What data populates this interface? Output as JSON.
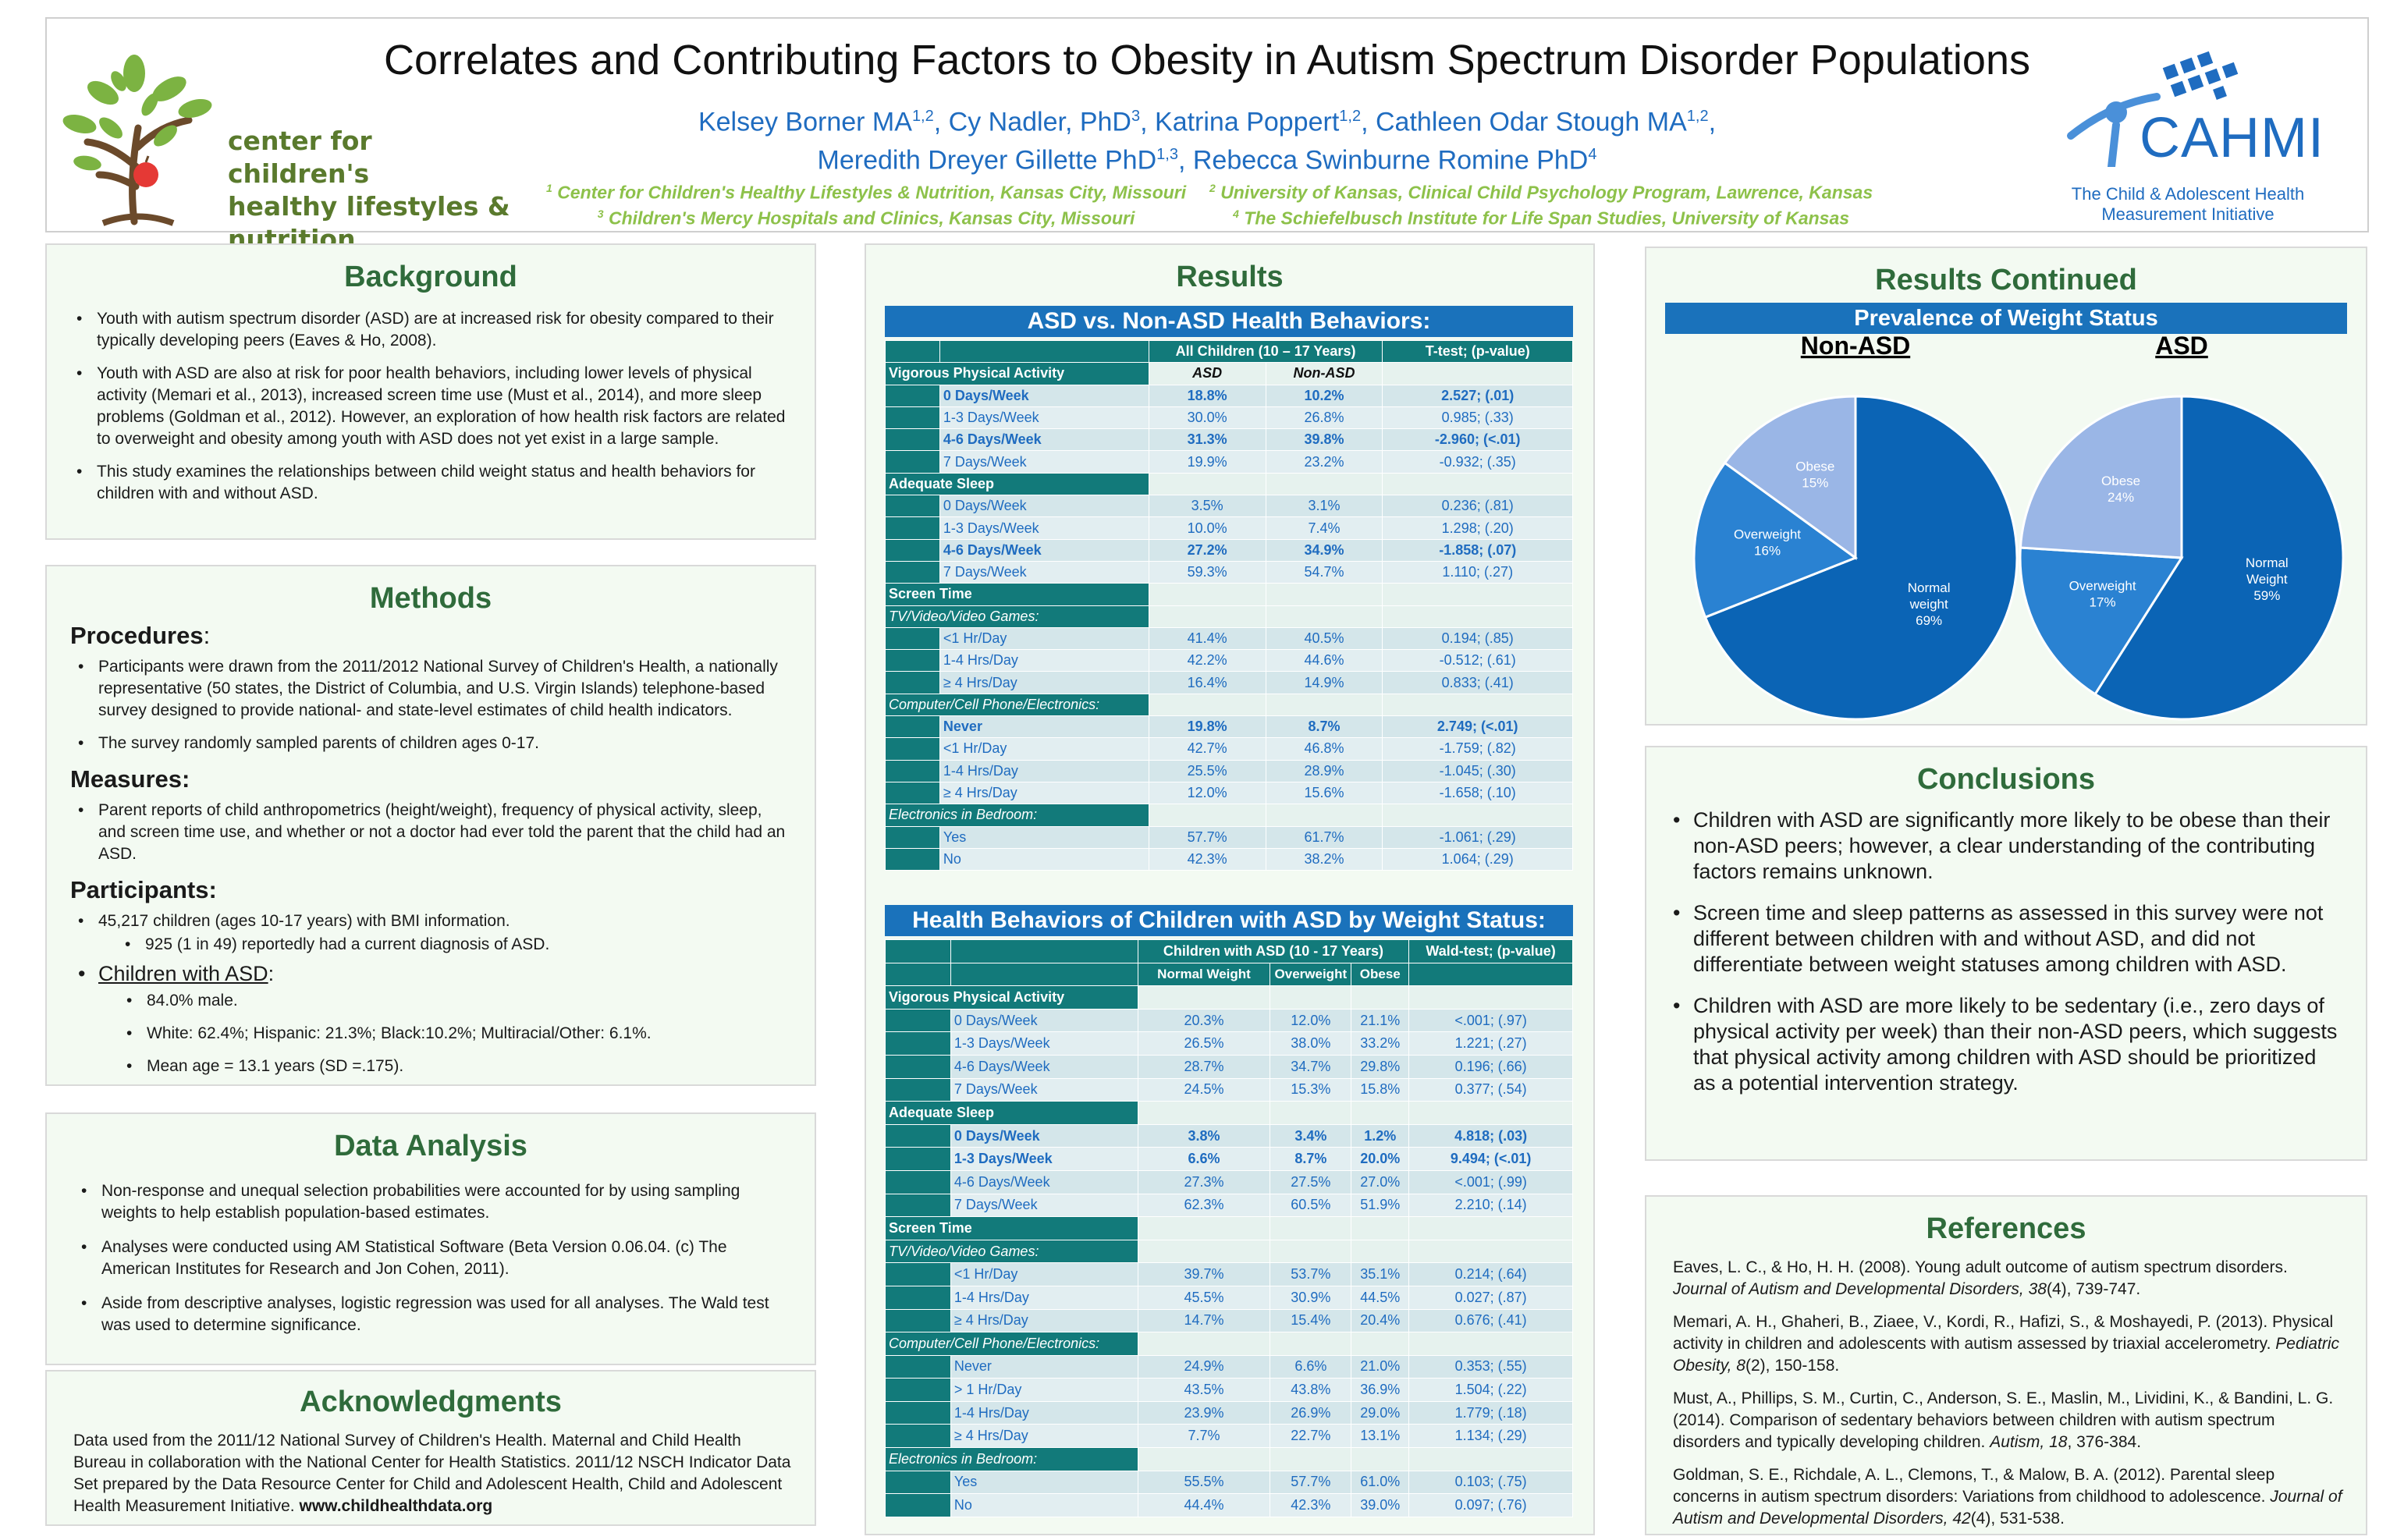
{
  "header": {
    "title": "Correlates and Contributing Factors to Obesity in Autism Spectrum Disorder Populations",
    "authors_line1": [
      {
        "name": "Kelsey Borner MA",
        "sup": "1,2"
      },
      {
        "name": "Cy Nadler, PhD",
        "sup": "3"
      },
      {
        "name": "Katrina Poppert",
        "sup": "1,2"
      },
      {
        "name": "Cathleen Odar Stough MA",
        "sup": "1,2"
      }
    ],
    "authors_line2": [
      {
        "name": "Meredith Dreyer Gillette PhD",
        "sup": "1,3"
      },
      {
        "name": "Rebecca Swinburne Romine PhD",
        "sup": "4"
      }
    ],
    "affil_left": [
      {
        "sup": "1",
        "text": "Center for Children's Healthy Lifestyles & Nutrition, Kansas City, Missouri"
      },
      {
        "sup": "3",
        "text": "Children's Mercy Hospitals and Clinics, Kansas City, Missouri"
      }
    ],
    "affil_right": [
      {
        "sup": "2",
        "text": "University of Kansas, Clinical Child Psychology Program, Lawrence, Kansas"
      },
      {
        "sup": "4",
        "text": "The Schiefelbusch Institute for Life Span Studies, University of Kansas"
      }
    ],
    "logo_left_lines": [
      "center for children's",
      "healthy lifestyles &",
      "nutrition"
    ],
    "logo_right_name": "CAHMI",
    "logo_right_lines": [
      "The Child & Adolescent Health",
      "Measurement Initiative"
    ]
  },
  "background": {
    "title": "Background",
    "items": [
      "Youth with autism spectrum disorder (ASD) are at increased risk for obesity compared to their typically developing peers (Eaves & Ho, 2008).",
      "Youth with ASD are also at risk for poor health behaviors, including lower levels of physical activity (Memari et al., 2013), increased screen time use (Must et al., 2014), and more sleep problems (Goldman et al., 2012). However, an exploration of how health risk factors are related to overweight and obesity among youth with ASD does not yet exist in a large sample.",
      "This study examines the relationships between child weight status and health behaviors for children with and without ASD."
    ]
  },
  "methods": {
    "title": "Methods",
    "procedures_label": "Procedures",
    "procedures": [
      "Participants were drawn from the 2011/2012 National Survey of Children's Health, a nationally representative (50 states, the District of Columbia, and U.S. Virgin Islands) telephone-based survey designed to provide national- and state-level estimates of child health indicators.",
      "The survey randomly sampled parents of children ages 0-17."
    ],
    "measures_label": "Measures:",
    "measures": [
      "Parent reports of child anthropometrics (height/weight), frequency of physical activity, sleep, and screen time use, and whether or not a doctor had ever told the parent that the child had an ASD."
    ],
    "participants_label": "Participants:",
    "participants_1": "45,217 children (ages 10-17 years) with BMI information.",
    "participants_1a": "925 (1 in 49) reportedly had a current diagnosis of ASD.",
    "participants_2": "Children with ASD",
    "participants_2_items": [
      "84.0% male.",
      "White: 62.4%; Hispanic: 21.3%; Black:10.2%; Multiracial/Other: 6.1%.",
      "Mean age = 13.1 years (SD =.175)."
    ]
  },
  "analysis": {
    "title": "Data Analysis",
    "items": [
      "Non-response and unequal selection probabilities were accounted for by using sampling weights to help establish population-based estimates.",
      "Analyses were conducted using AM Statistical Software (Beta Version 0.06.04. (c) The American Institutes for Research and Jon Cohen, 2011).",
      "Aside from descriptive analyses, logistic regression was used for all analyses. The Wald test was used to determine significance."
    ]
  },
  "ack": {
    "title": "Acknowledgments",
    "text": "Data used from the 2011/12 National Survey of Children's Health. Maternal and Child Health Bureau in collaboration with the National Center for Health Statistics.  2011/12 NSCH Indicator Data Set prepared by the Data Resource Center for Child and Adolescent Health, Child and Adolescent Health Measurement Initiative.",
    "link": "www.childhealthdata.org"
  },
  "results": {
    "title": "Results",
    "t1_title": "ASD vs. Non-ASD Health Behaviors:",
    "t1_header": [
      "All Children (10 – 17 Years)",
      "T-test; (p-value)"
    ],
    "t1_sub": [
      "ASD",
      "Non-ASD"
    ],
    "t1_rows": [
      {
        "k": "sec",
        "label": "Vigorous Physical Activity"
      },
      {
        "k": "row",
        "b": true,
        "c": [
          "0 Days/Week",
          "18.8%",
          "10.2%",
          "2.527; (.01)"
        ]
      },
      {
        "k": "row",
        "c": [
          "1-3 Days/Week",
          "30.0%",
          "26.8%",
          "0.985; (.33)"
        ]
      },
      {
        "k": "row",
        "b": true,
        "c": [
          "4-6 Days/Week",
          "31.3%",
          "39.8%",
          "-2.960; (<.01)"
        ]
      },
      {
        "k": "row",
        "c": [
          "7 Days/Week",
          "19.9%",
          "23.2%",
          "-0.932; (.35)"
        ]
      },
      {
        "k": "sec",
        "label": "Adequate Sleep"
      },
      {
        "k": "row",
        "c": [
          "0 Days/Week",
          "3.5%",
          "3.1%",
          "0.236; (.81)"
        ]
      },
      {
        "k": "row",
        "c": [
          "1-3 Days/Week",
          "10.0%",
          "7.4%",
          "1.298; (.20)"
        ]
      },
      {
        "k": "row",
        "b": true,
        "c": [
          "4-6 Days/Week",
          "27.2%",
          "34.9%",
          "-1.858; (.07)"
        ]
      },
      {
        "k": "row",
        "c": [
          "7 Days/Week",
          "59.3%",
          "54.7%",
          "1.110; (.27)"
        ]
      },
      {
        "k": "sec",
        "label": "Screen Time"
      },
      {
        "k": "ssec",
        "label": "TV/Video/Video Games:"
      },
      {
        "k": "row",
        "c": [
          "<1 Hr/Day",
          "41.4%",
          "40.5%",
          "0.194; (.85)"
        ]
      },
      {
        "k": "row",
        "c": [
          "1-4 Hrs/Day",
          "42.2%",
          "44.6%",
          "-0.512; (.61)"
        ]
      },
      {
        "k": "row",
        "c": [
          "≥ 4 Hrs/Day",
          "16.4%",
          "14.9%",
          "0.833; (.41)"
        ]
      },
      {
        "k": "ssec",
        "label": "Computer/Cell Phone/Electronics:"
      },
      {
        "k": "row",
        "b": true,
        "c": [
          "Never",
          "19.8%",
          "8.7%",
          "2.749; (<.01)"
        ]
      },
      {
        "k": "row",
        "c": [
          "<1 Hr/Day",
          "42.7%",
          "46.8%",
          "-1.759; (.82)"
        ]
      },
      {
        "k": "row",
        "c": [
          "1-4 Hrs/Day",
          "25.5%",
          "28.9%",
          "-1.045; (.30)"
        ]
      },
      {
        "k": "row",
        "c": [
          "≥ 4 Hrs/Day",
          "12.0%",
          "15.6%",
          "-1.658; (.10)"
        ]
      },
      {
        "k": "ssec",
        "label": "Electronics in Bedroom:"
      },
      {
        "k": "row",
        "c": [
          "Yes",
          "57.7%",
          "61.7%",
          "-1.061; (.29)"
        ]
      },
      {
        "k": "row",
        "c": [
          "No",
          "42.3%",
          "38.2%",
          "1.064; (.29)"
        ]
      }
    ],
    "t2_title": "Health Behaviors of Children with ASD by Weight Status:",
    "t2_header": [
      "Children with ASD (10 - 17 Years)",
      "Wald-test; (p-value)"
    ],
    "t2_sub": [
      "Normal Weight",
      "Overweight",
      "Obese"
    ],
    "t2_rows": [
      {
        "k": "sec",
        "label": "Vigorous Physical Activity"
      },
      {
        "k": "row",
        "c": [
          "0 Days/Week",
          "20.3%",
          "12.0%",
          "21.1%",
          "<.001; (.97)"
        ]
      },
      {
        "k": "row",
        "c": [
          "1-3 Days/Week",
          "26.5%",
          "38.0%",
          "33.2%",
          "1.221; (.27)"
        ]
      },
      {
        "k": "row",
        "c": [
          "4-6 Days/Week",
          "28.7%",
          "34.7%",
          "29.8%",
          "0.196; (.66)"
        ]
      },
      {
        "k": "row",
        "c": [
          "7 Days/Week",
          "24.5%",
          "15.3%",
          "15.8%",
          "0.377; (.54)"
        ]
      },
      {
        "k": "sec",
        "label": "Adequate Sleep"
      },
      {
        "k": "row",
        "b": true,
        "c": [
          "0 Days/Week",
          "3.8%",
          "3.4%",
          "1.2%",
          "4.818; (.03)"
        ]
      },
      {
        "k": "row",
        "b": true,
        "c": [
          "1-3 Days/Week",
          "6.6%",
          "8.7%",
          "20.0%",
          "9.494; (<.01)"
        ]
      },
      {
        "k": "row",
        "c": [
          "4-6 Days/Week",
          "27.3%",
          "27.5%",
          "27.0%",
          "<.001; (.99)"
        ]
      },
      {
        "k": "row",
        "c": [
          "7 Days/Week",
          "62.3%",
          "60.5%",
          "51.9%",
          "2.210; (.14)"
        ]
      },
      {
        "k": "sec",
        "label": "Screen Time"
      },
      {
        "k": "ssec",
        "label": "TV/Video/Video Games:"
      },
      {
        "k": "row",
        "c": [
          "<1 Hr/Day",
          "39.7%",
          "53.7%",
          "35.1%",
          "0.214; (.64)"
        ]
      },
      {
        "k": "row",
        "c": [
          "1-4 Hrs/Day",
          "45.5%",
          "30.9%",
          "44.5%",
          "0.027; (.87)"
        ]
      },
      {
        "k": "row",
        "c": [
          "≥ 4 Hrs/Day",
          "14.7%",
          "15.4%",
          "20.4%",
          "0.676; (.41)"
        ]
      },
      {
        "k": "ssec",
        "label": "Computer/Cell Phone/Electronics:"
      },
      {
        "k": "row",
        "c": [
          "Never",
          "24.9%",
          "6.6%",
          "21.0%",
          "0.353; (.55)"
        ]
      },
      {
        "k": "row",
        "c": [
          "> 1 Hr/Day",
          "43.5%",
          "43.8%",
          "36.9%",
          "1.504; (.22)"
        ]
      },
      {
        "k": "row",
        "c": [
          "1-4 Hrs/Day",
          "23.9%",
          "26.9%",
          "29.0%",
          "1.779; (.18)"
        ]
      },
      {
        "k": "row",
        "c": [
          "≥ 4 Hrs/Day",
          "7.7%",
          "22.7%",
          "13.1%",
          "1.134; (.29)"
        ]
      },
      {
        "k": "ssec",
        "label": "Electronics in Bedroom:"
      },
      {
        "k": "row",
        "c": [
          "Yes",
          "55.5%",
          "57.7%",
          "61.0%",
          "0.103; (.75)"
        ]
      },
      {
        "k": "row",
        "c": [
          "No",
          "44.4%",
          "42.3%",
          "39.0%",
          "0.097; (.76)"
        ]
      }
    ]
  },
  "results2": {
    "title": "Results Continued",
    "bar": "Prevalence of Weight Status"
  },
  "chart_data": {
    "type": "pie",
    "title": "Prevalence of Weight Status",
    "charts": [
      {
        "name": "Non-ASD",
        "slices": [
          {
            "label": "Normal weight",
            "value": 69,
            "color": "#0b64b5"
          },
          {
            "label": "Overweight",
            "value": 16,
            "color": "#2a82d2"
          },
          {
            "label": "Obese",
            "value": 15,
            "color": "#9ab6e6"
          }
        ]
      },
      {
        "name": "ASD",
        "slices": [
          {
            "label": "Normal Weight",
            "value": 59,
            "color": "#0b64b5"
          },
          {
            "label": "Overweight",
            "value": 17,
            "color": "#2a82d2"
          },
          {
            "label": "Obese",
            "value": 24,
            "color": "#9ab6e6"
          }
        ]
      }
    ]
  },
  "conclusions": {
    "title": "Conclusions",
    "items": [
      "Children with ASD are significantly more likely to be obese than their non-ASD peers; however, a clear understanding of the contributing factors remains unknown.",
      "Screen time and sleep patterns as assessed in this survey were not different between children with and without ASD, and did not differentiate between weight statuses among children with ASD.",
      "Children with ASD are more likely to be sedentary (i.e., zero days of physical activity per week) than their non-ASD peers, which suggests that physical activity among children with ASD should be prioritized as a potential intervention strategy."
    ]
  },
  "references": {
    "title": "References",
    "items": [
      {
        "pre": "Eaves, L. C., & Ho, H. H. (2008). Young adult outcome of autism spectrum disorders. ",
        "it": "Journal of Autism and Developmental Disorders, 38",
        "post": "(4), 739-747."
      },
      {
        "pre": "Memari, A. H., Ghaheri, B., Ziaee, V., Kordi, R., Hafizi, S., & Moshayedi, P. (2013). Physical activity in children and adolescents with autism assessed by triaxial accelerometry. ",
        "it": "Pediatric Obesity, 8",
        "post": "(2), 150-158."
      },
      {
        "pre": "Must, A., Phillips, S. M., Curtin, C., Anderson, S. E., Maslin, M., Lividini, K., & Bandini, L. G. (2014). Comparison of sedentary behaviors between children with autism spectrum disorders and typically developing children. ",
        "it": "Autism, 18",
        "post": ", 376-384."
      },
      {
        "pre": "Goldman, S. E., Richdale, A. L., Clemons, T., & Malow, B. A. (2012). Parental sleep concerns in autism spectrum disorders: Variations from childhood to adolescence. ",
        "it": "Journal of Autism and Developmental Disorders, 42",
        "post": "(4), 531-538."
      }
    ]
  }
}
